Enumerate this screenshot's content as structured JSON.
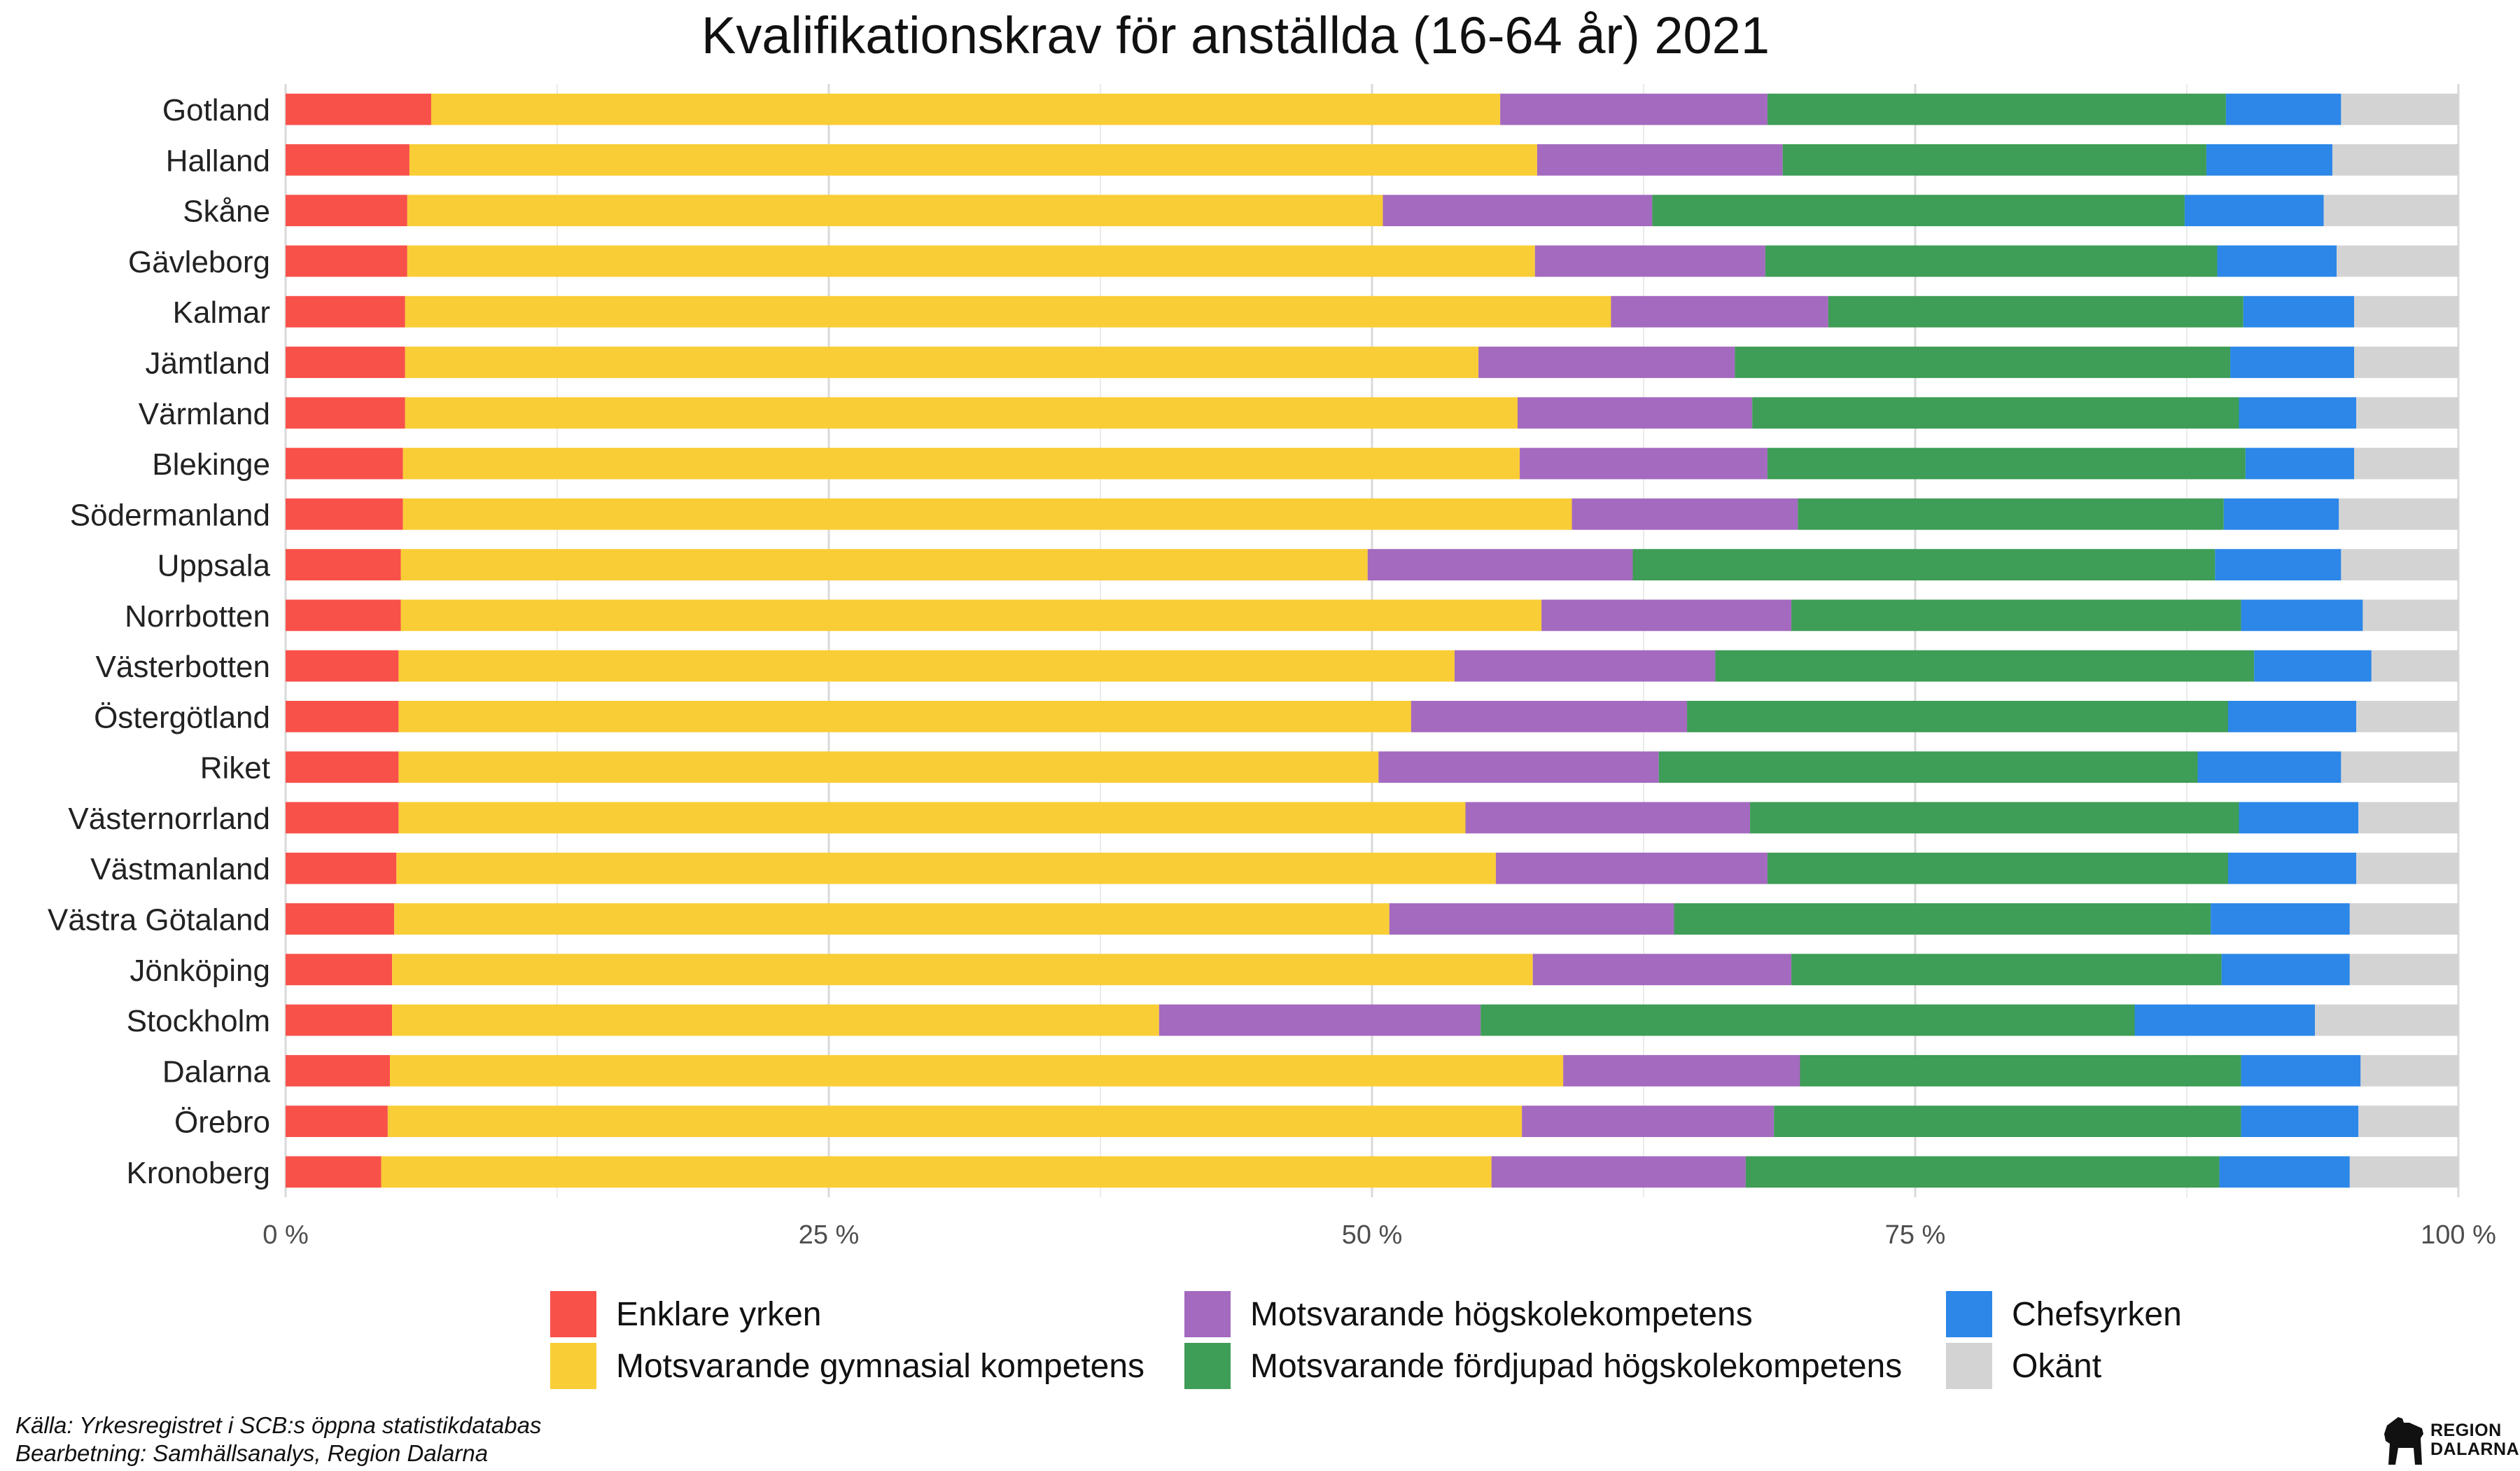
{
  "title": "Kvalifikationskrav för anställda (16-64 år) 2021",
  "source_line1": "Källa: Yrkesregistret i SCB:s öppna statistikdatabas",
  "source_line2": "Bearbetning: Samhällsanalys, Region Dalarna",
  "logo": {
    "line1": "REGION",
    "line2": "DALARNA"
  },
  "chart_data": {
    "type": "bar",
    "orientation": "horizontal",
    "stacked": true,
    "percent_stacked": true,
    "categories": [
      "Gotland",
      "Halland",
      "Skåne",
      "Gävleborg",
      "Kalmar",
      "Jämtland",
      "Värmland",
      "Blekinge",
      "Södermanland",
      "Uppsala",
      "Norrbotten",
      "Västerbotten",
      "Östergötland",
      "Riket",
      "Västernorrland",
      "Västmanland",
      "Västra Götaland",
      "Jönköping",
      "Stockholm",
      "Dalarna",
      "Örebro",
      "Kronoberg"
    ],
    "series": [
      {
        "name": "Enklare yrken",
        "color": "#f8514a",
        "values": [
          6.7,
          5.7,
          5.6,
          5.6,
          5.5,
          5.5,
          5.5,
          5.4,
          5.4,
          5.3,
          5.3,
          5.2,
          5.2,
          5.2,
          5.2,
          5.1,
          5.0,
          4.9,
          4.9,
          4.8,
          4.7,
          4.4
        ]
      },
      {
        "name": "Motsvarande gymnasial kompetens",
        "color": "#f9cd35",
        "values": [
          49.2,
          51.9,
          44.9,
          51.9,
          55.5,
          49.4,
          51.2,
          51.4,
          53.8,
          44.5,
          52.5,
          48.6,
          46.6,
          45.1,
          49.1,
          50.6,
          45.8,
          52.5,
          35.3,
          54.0,
          52.2,
          51.1
        ]
      },
      {
        "name": "Motsvarande högskolekompetens",
        "color": "#a36abf",
        "values": [
          12.3,
          11.3,
          12.4,
          10.6,
          10.0,
          11.8,
          10.8,
          11.4,
          10.4,
          12.2,
          11.5,
          12.0,
          12.7,
          12.9,
          13.1,
          12.5,
          13.1,
          11.9,
          14.8,
          10.9,
          11.6,
          11.7
        ]
      },
      {
        "name": "Motsvarande fördjupad högskolekompetens",
        "color": "#3e9d56",
        "values": [
          21.1,
          19.5,
          24.5,
          20.8,
          19.1,
          22.8,
          22.4,
          22.0,
          19.6,
          26.8,
          20.7,
          24.8,
          24.9,
          24.8,
          22.5,
          21.2,
          24.7,
          19.8,
          30.1,
          20.3,
          21.5,
          21.8
        ]
      },
      {
        "name": "Chefsyrken",
        "color": "#2c87e8",
        "values": [
          5.3,
          5.8,
          6.4,
          5.5,
          5.1,
          5.7,
          5.4,
          5.0,
          5.3,
          5.8,
          5.6,
          5.4,
          5.9,
          6.6,
          5.5,
          5.9,
          6.4,
          5.9,
          8.3,
          5.5,
          5.4,
          6.0
        ]
      },
      {
        "name": "Okänt",
        "color": "#d3d3d3",
        "values": [
          5.4,
          5.8,
          6.2,
          5.6,
          4.8,
          4.8,
          4.7,
          4.8,
          5.5,
          5.4,
          4.4,
          4.0,
          4.7,
          5.4,
          4.6,
          4.7,
          5.0,
          5.0,
          6.6,
          4.5,
          4.6,
          5.0
        ]
      }
    ],
    "xlim": [
      0,
      100
    ],
    "x_ticks": [
      0,
      25,
      50,
      75,
      100
    ],
    "x_tick_labels": [
      "0 %",
      "25 %",
      "50 %",
      "75 %",
      "100 %"
    ],
    "xlabel": "",
    "ylabel": "",
    "grid": true,
    "legend_position": "bottom"
  }
}
